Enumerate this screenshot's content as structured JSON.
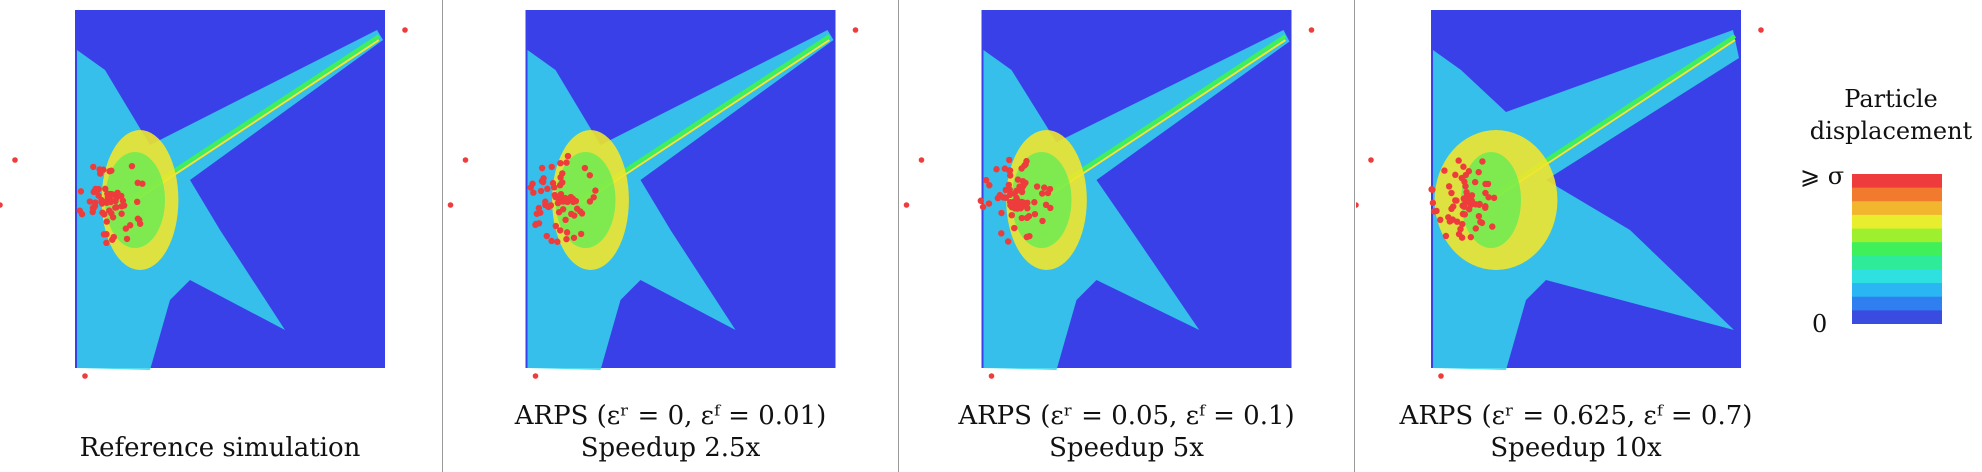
{
  "panels": [
    {
      "id": "reference",
      "caption_line1": "",
      "caption_line2": "Reference simulation",
      "spread": 1.0
    },
    {
      "id": "arps-1",
      "caption_line1": "ARPS (εʳ = 0, εᶠ = 0.01)",
      "caption_line2": "Speedup 2.5x",
      "spread": 1.0
    },
    {
      "id": "arps-2",
      "caption_line1": "ARPS (εʳ = 0.05, εᶠ = 0.1)",
      "caption_line2": "Speedup 5x",
      "spread": 1.05
    },
    {
      "id": "arps-3",
      "caption_line1": "ARPS (εʳ = 0.625, εᶠ = 0.7)",
      "caption_line2": "Speedup 10x",
      "spread": 1.6
    }
  ],
  "legend": {
    "title_line1": "Particle",
    "title_line2": "displacement",
    "max_label": "⩾ σ",
    "min_label": "0",
    "colors": [
      "#3a4be0",
      "#2f7ff0",
      "#29b6f2",
      "#2ee0e0",
      "#2eeb9a",
      "#3ff05a",
      "#9ef02e",
      "#e8ee2e",
      "#f2b62e",
      "#f27a2e",
      "#ee3c3c"
    ]
  },
  "colors": {
    "background_particles": "#3a40e8",
    "low": "#35d6ea",
    "mid": "#3ff05a",
    "high": "#f0e62e",
    "max": "#ee3c3c"
  }
}
